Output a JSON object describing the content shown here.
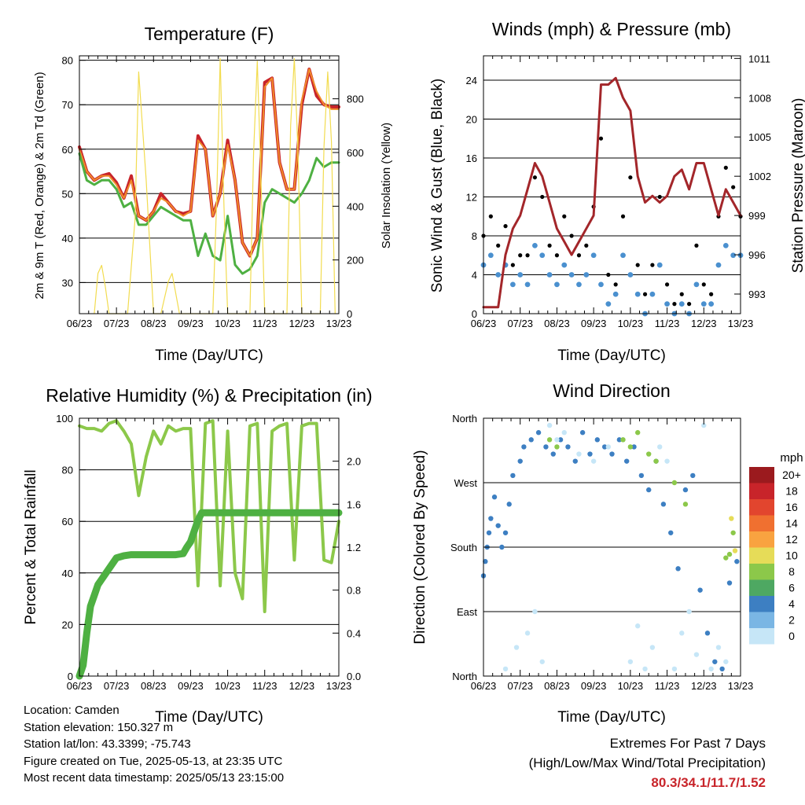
{
  "x_ticks": [
    "06/23",
    "07/23",
    "08/23",
    "09/23",
    "10/23",
    "11/23",
    "12/23",
    "13/23"
  ],
  "x_label": "Time (Day/UTC)",
  "chart_data": [
    {
      "type": "line",
      "title": "Temperature (F)",
      "xlabel": "Time (Day/UTC)",
      "ylabel": "2m & 9m T (Red, Orange) & 2m Td (Green)",
      "ylabel_right": "Solar Insolation (Yellow)",
      "ylim": [
        23,
        81
      ],
      "y_ticks": [
        30,
        40,
        50,
        60,
        70,
        80
      ],
      "ylim_right": [
        0,
        960
      ],
      "y_ticks_right": [
        0,
        200,
        400,
        600,
        800
      ],
      "series": [
        {
          "color": "#c8242a",
          "x": [
            0,
            0.2,
            0.4,
            0.6,
            0.8,
            1.0,
            1.2,
            1.4,
            1.6,
            1.8,
            2.0,
            2.2,
            2.4,
            2.6,
            2.8,
            3.0,
            3.2,
            3.4,
            3.6,
            3.8,
            4.0,
            4.2,
            4.4,
            4.6,
            4.8,
            5.0,
            5.2,
            5.4,
            5.6,
            5.8,
            6.0,
            6.2,
            6.4,
            6.6,
            6.8,
            7.0
          ],
          "y": [
            60.5,
            55,
            53,
            54,
            54.5,
            52.5,
            49,
            54,
            45,
            44,
            46,
            50,
            48,
            46,
            45.5,
            46,
            63,
            60,
            45,
            50,
            62,
            53,
            39,
            36,
            40,
            75,
            76,
            57,
            51,
            51,
            70,
            78,
            72,
            70,
            69.5,
            69.5
          ]
        },
        {
          "color": "#f08c2a",
          "x": [
            0,
            0.2,
            0.4,
            0.6,
            0.8,
            1.0,
            1.2,
            1.4,
            1.6,
            1.8,
            2.0,
            2.2,
            2.4,
            2.6,
            2.8,
            3.0,
            3.2,
            3.4,
            3.6,
            3.8,
            4.0,
            4.2,
            4.4,
            4.6,
            4.8,
            5.0,
            5.2,
            5.4,
            5.6,
            5.8,
            6.0,
            6.2,
            6.4,
            6.6,
            6.8,
            7.0
          ],
          "y": [
            60,
            55,
            53,
            54,
            54,
            52,
            49,
            53,
            45,
            44,
            46,
            49,
            48,
            46,
            45,
            46,
            62,
            60,
            45,
            50,
            61,
            53,
            39,
            36,
            40,
            74,
            76,
            57,
            51,
            51,
            71,
            78,
            73,
            70,
            69,
            69
          ]
        },
        {
          "color": "#4eb042",
          "x": [
            0,
            0.2,
            0.4,
            0.6,
            0.8,
            1.0,
            1.2,
            1.4,
            1.6,
            1.8,
            2.0,
            2.2,
            2.4,
            2.6,
            2.8,
            3.0,
            3.2,
            3.4,
            3.6,
            3.8,
            4.0,
            4.2,
            4.4,
            4.6,
            4.8,
            5.0,
            5.2,
            5.4,
            5.6,
            5.8,
            6.0,
            6.2,
            6.4,
            6.6,
            6.8,
            7.0
          ],
          "y": [
            59,
            53,
            52,
            53,
            53,
            51,
            47,
            48,
            43,
            43,
            45,
            47,
            46,
            45,
            44,
            44,
            36,
            41,
            36,
            35,
            45,
            34,
            32,
            33,
            36,
            48,
            51,
            50,
            49,
            48,
            50,
            53,
            58,
            56,
            57,
            57
          ]
        },
        {
          "color": "#f2dc50",
          "x": [
            0.4,
            0.5,
            0.6,
            0.7,
            0.8,
            1.3,
            1.5,
            1.6,
            1.8,
            2.0,
            2.2,
            2.4,
            2.5,
            2.7,
            3.6,
            3.7,
            3.8,
            3.9,
            4.0,
            4.6,
            4.7,
            4.8,
            4.9,
            5.0,
            5.6,
            5.7,
            5.8,
            5.9,
            6.0,
            6.5,
            6.6,
            6.7,
            6.8,
            6.9
          ],
          "y": [
            0,
            150,
            180,
            100,
            0,
            0,
            350,
            900,
            500,
            0,
            0,
            120,
            150,
            0,
            0,
            400,
            950,
            400,
            0,
            0,
            600,
            940,
            500,
            0,
            0,
            700,
            950,
            600,
            0,
            0,
            620,
            900,
            640,
            0
          ]
        }
      ]
    },
    {
      "type": "scatter",
      "title": "Winds (mph) & Pressure (mb)",
      "xlabel": "Time (Day/UTC)",
      "ylabel": "Sonic Wind & Gust (Blue, Black)",
      "ylabel_right": "Station Pressure (Maroon)",
      "ylim": [
        0,
        26.5
      ],
      "y_ticks": [
        0,
        4,
        8,
        12,
        16,
        20,
        24
      ],
      "ylim_right": [
        991.5,
        1011.2
      ],
      "y_ticks_right": [
        993,
        996,
        999,
        1002,
        1005,
        1008,
        1011
      ],
      "series": [
        {
          "color": "#4a90cf",
          "x": [
            0,
            0.2,
            0.4,
            0.6,
            0.8,
            1.0,
            1.2,
            1.4,
            1.6,
            1.8,
            2.0,
            2.2,
            2.4,
            2.6,
            2.8,
            3.0,
            3.2,
            3.4,
            3.6,
            3.8,
            4.0,
            4.2,
            4.4,
            4.6,
            4.8,
            5.0,
            5.2,
            5.4,
            5.6,
            5.8,
            6.0,
            6.2,
            6.4,
            6.6,
            6.8,
            7.0
          ],
          "y": [
            5,
            6,
            4,
            5,
            3,
            4,
            3,
            7,
            6,
            4,
            3,
            5,
            4,
            3,
            4,
            6,
            3,
            1,
            2,
            6,
            4,
            2,
            0,
            2,
            5,
            1,
            0,
            1,
            0,
            3,
            1,
            1,
            5,
            7,
            6,
            6
          ]
        },
        {
          "color": "#000000",
          "x": [
            0,
            0.2,
            0.4,
            0.6,
            0.8,
            1.0,
            1.2,
            1.4,
            1.6,
            1.8,
            2.0,
            2.2,
            2.4,
            2.6,
            2.8,
            3.0,
            3.2,
            3.4,
            3.6,
            3.8,
            4.0,
            4.2,
            4.4,
            4.6,
            4.8,
            5.0,
            5.2,
            5.4,
            5.6,
            5.8,
            6.0,
            6.2,
            6.4,
            6.6,
            6.8,
            7.0
          ],
          "y": [
            8,
            10,
            7,
            9,
            5,
            6,
            6,
            14,
            12,
            7,
            6,
            10,
            8,
            6,
            7,
            11,
            18,
            4,
            3,
            10,
            14,
            5,
            2,
            5,
            12,
            3,
            1,
            2,
            1,
            7,
            3,
            2,
            10,
            15,
            13,
            10
          ]
        },
        {
          "color": "#a3262a",
          "x": [
            0,
            0.2,
            0.4,
            0.6,
            0.8,
            1.0,
            1.2,
            1.4,
            1.6,
            1.8,
            2.0,
            2.2,
            2.4,
            2.6,
            2.8,
            3.0,
            3.2,
            3.4,
            3.6,
            3.8,
            4.0,
            4.2,
            4.4,
            4.6,
            4.8,
            5.0,
            5.2,
            5.4,
            5.6,
            5.8,
            6.0,
            6.2,
            6.4,
            6.6,
            6.8,
            7.0
          ],
          "y": [
            992,
            992,
            992,
            996,
            998,
            999,
            1001,
            1003,
            1002,
            1000,
            998,
            997,
            996,
            997,
            998,
            999,
            1009,
            1009,
            1009.5,
            1008,
            1007,
            1002,
            1000,
            1000.5,
            1000,
            1000.5,
            1002,
            1002.5,
            1001,
            1003,
            1003,
            1001,
            999,
            1001,
            1000,
            999
          ]
        }
      ]
    },
    {
      "type": "line",
      "title": "Relative Humidity (%) & Precipitation (in)",
      "xlabel": "Time (Day/UTC)",
      "ylabel": "Percent & Total Rainfall",
      "ylim": [
        0,
        100
      ],
      "y_ticks": [
        0,
        20,
        40,
        60,
        80,
        100
      ],
      "ylim_right": [
        0,
        2.4
      ],
      "y_ticks_right": [
        "0.0",
        "0.4",
        "0.8",
        "1.2",
        "1.6",
        "2.0"
      ],
      "series": [
        {
          "color": "#8cc84a",
          "x": [
            0,
            0.2,
            0.4,
            0.6,
            0.8,
            1.0,
            1.2,
            1.4,
            1.6,
            1.8,
            2.0,
            2.2,
            2.4,
            2.6,
            2.8,
            3.0,
            3.2,
            3.4,
            3.6,
            3.8,
            4.0,
            4.2,
            4.4,
            4.6,
            4.8,
            5.0,
            5.2,
            5.4,
            5.6,
            5.8,
            6.0,
            6.2,
            6.4,
            6.6,
            6.8,
            7.0
          ],
          "y": [
            97,
            96,
            96,
            95,
            98,
            99,
            95,
            90,
            70,
            85,
            95,
            90,
            97,
            95,
            96,
            96,
            35,
            98,
            99,
            35,
            95,
            40,
            30,
            97,
            98,
            25,
            95,
            97,
            98,
            45,
            97,
            98,
            98,
            45,
            44,
            60
          ]
        },
        {
          "color": "#4eb042",
          "x": [
            0,
            0.1,
            0.2,
            0.3,
            0.4,
            0.5,
            0.6,
            0.8,
            1.0,
            1.2,
            1.4,
            1.6,
            1.8,
            2.0,
            2.2,
            2.4,
            2.6,
            2.8,
            2.9,
            3.0,
            3.1,
            3.2,
            3.3,
            3.5,
            4.0,
            5.0,
            6.0,
            7.0
          ],
          "y": [
            0,
            0.1,
            0.4,
            0.65,
            0.75,
            0.85,
            0.9,
            1.0,
            1.1,
            1.12,
            1.13,
            1.13,
            1.13,
            1.13,
            1.13,
            1.13,
            1.13,
            1.14,
            1.2,
            1.25,
            1.35,
            1.45,
            1.52,
            1.52,
            1.52,
            1.52,
            1.52,
            1.52
          ]
        }
      ]
    },
    {
      "type": "scatter",
      "title": "Wind Direction",
      "xlabel": "Time (Day/UTC)",
      "ylabel": "Direction (Colored By Speed)",
      "y_categories": [
        "North",
        "East",
        "South",
        "West",
        "North"
      ],
      "legend_title": "mph",
      "legend_labels": [
        "20+",
        "18",
        "16",
        "14",
        "12",
        "10",
        "8",
        "6",
        "4",
        "2",
        "0"
      ],
      "legend_colors": [
        "#9b1a1e",
        "#c8242a",
        "#e2452e",
        "#f07030",
        "#f9a340",
        "#e6dc58",
        "#8cc84a",
        "#4ea862",
        "#3d7fc2",
        "#7ab6e4",
        "#c6e6f7"
      ],
      "series": [
        {
          "color": "#3d7fc2",
          "x": [
            0.0,
            0.05,
            0.1,
            0.15,
            0.2,
            0.3,
            0.4,
            0.5,
            0.6,
            0.7,
            0.8,
            1.0,
            1.1,
            1.3,
            1.5,
            1.7,
            1.9,
            2.1,
            2.3,
            2.5,
            2.7,
            2.9,
            3.1,
            3.3,
            3.5,
            3.7,
            3.9,
            4.1,
            4.3,
            4.5,
            4.7,
            4.9,
            5.1,
            5.3,
            5.5,
            5.7,
            5.9,
            6.1,
            6.3,
            6.5,
            6.7,
            6.9
          ],
          "y": [
            140,
            160,
            180,
            200,
            220,
            250,
            210,
            180,
            200,
            240,
            280,
            300,
            320,
            330,
            340,
            320,
            310,
            330,
            320,
            300,
            340,
            310,
            330,
            320,
            310,
            330,
            300,
            320,
            280,
            260,
            300,
            240,
            200,
            150,
            260,
            280,
            120,
            60,
            20,
            10,
            130,
            160
          ]
        },
        {
          "color": "#c6e6f7",
          "x": [
            0.6,
            0.9,
            1.2,
            1.4,
            1.6,
            1.8,
            2.0,
            2.2,
            2.6,
            3.0,
            3.4,
            3.8,
            4.0,
            4.2,
            4.4,
            4.6,
            4.8,
            5.0,
            5.2,
            5.4,
            5.6,
            5.8,
            6.0,
            6.2,
            6.4,
            6.6
          ],
          "y": [
            10,
            40,
            60,
            90,
            20,
            350,
            330,
            340,
            310,
            300,
            320,
            330,
            20,
            70,
            10,
            40,
            320,
            300,
            10,
            60,
            90,
            30,
            350,
            10,
            40,
            20
          ]
        },
        {
          "color": "#8cc84a",
          "x": [
            1.8,
            2.0,
            3.8,
            4.0,
            4.2,
            4.5,
            4.7,
            5.2,
            5.5,
            6.6,
            6.7,
            6.8
          ],
          "y": [
            330,
            320,
            330,
            320,
            340,
            310,
            300,
            270,
            240,
            165,
            170,
            200
          ]
        },
        {
          "color": "#e6dc58",
          "x": [
            6.75,
            6.85
          ],
          "y": [
            220,
            175
          ]
        }
      ]
    }
  ],
  "footer": {
    "location": "Location: Camden",
    "elevation": "Station elevation: 150.327 m",
    "latlon": "Station lat/lon: 43.3399; -75.743",
    "created": "Figure created on Tue, 2025-05-13, at 23:35 UTC",
    "timestamp": "Most recent data timestamp: 2025/05/13 23:15:00"
  },
  "extremes": {
    "title": "Extremes For Past 7 Days",
    "subtitle": "(High/Low/Max Wind/Total Precipitation)",
    "value": "80.3/34.1/11.7/1.52"
  }
}
